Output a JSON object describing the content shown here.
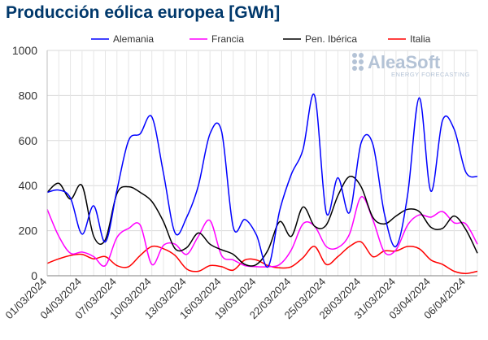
{
  "chart_data": {
    "type": "line",
    "title": "Producción eólica europea [GWh]",
    "xlabel": "",
    "ylabel": "",
    "ylim": [
      0,
      1000
    ],
    "yticks": [
      0,
      200,
      400,
      600,
      800,
      1000
    ],
    "grid": true,
    "legend_position": "top",
    "x": [
      "01/03/2024",
      "02/03/2024",
      "03/03/2024",
      "04/03/2024",
      "05/03/2024",
      "06/03/2024",
      "07/03/2024",
      "08/03/2024",
      "09/03/2024",
      "10/03/2024",
      "11/03/2024",
      "12/03/2024",
      "13/03/2024",
      "14/03/2024",
      "15/03/2024",
      "16/03/2024",
      "17/03/2024",
      "18/03/2024",
      "19/03/2024",
      "20/03/2024",
      "21/03/2024",
      "22/03/2024",
      "23/03/2024",
      "24/03/2024",
      "25/03/2024",
      "26/03/2024",
      "27/03/2024",
      "28/03/2024",
      "29/03/2024",
      "30/03/2024",
      "31/03/2024",
      "01/04/2024",
      "02/04/2024",
      "03/04/2024",
      "04/04/2024",
      "05/04/2024",
      "06/04/2024",
      "07/04/2024"
    ],
    "xtick_labels": [
      "01/03/2024",
      "04/03/2024",
      "07/03/2024",
      "10/03/2024",
      "13/03/2024",
      "16/03/2024",
      "19/03/2024",
      "22/03/2024",
      "25/03/2024",
      "28/03/2024",
      "31/03/2024",
      "03/04/2024",
      "06/04/2024"
    ],
    "series": [
      {
        "name": "Alemania",
        "color": "#0000ff",
        "values": [
          370,
          380,
          345,
          185,
          310,
          150,
          380,
          600,
          630,
          705,
          455,
          190,
          260,
          400,
          630,
          640,
          215,
          250,
          180,
          40,
          290,
          450,
          560,
          800,
          280,
          435,
          280,
          590,
          585,
          275,
          130,
          360,
          790,
          375,
          690,
          650,
          460,
          440
        ]
      },
      {
        "name": "Francia",
        "color": "#ff00ff",
        "values": [
          295,
          175,
          100,
          105,
          85,
          45,
          170,
          210,
          225,
          50,
          135,
          140,
          95,
          175,
          245,
          90,
          70,
          45,
          40,
          40,
          50,
          115,
          230,
          220,
          130,
          125,
          185,
          350,
          250,
          105,
          115,
          225,
          270,
          260,
          285,
          235,
          230,
          140
        ]
      },
      {
        "name": "Pen. Ibérica",
        "color": "#000000",
        "values": [
          370,
          410,
          340,
          400,
          175,
          160,
          365,
          395,
          370,
          330,
          240,
          120,
          125,
          190,
          140,
          115,
          95,
          50,
          50,
          115,
          240,
          175,
          305,
          220,
          225,
          355,
          440,
          395,
          260,
          230,
          265,
          295,
          285,
          215,
          210,
          265,
          205,
          100
        ]
      },
      {
        "name": "Italia",
        "color": "#ff0000",
        "values": [
          55,
          75,
          90,
          95,
          75,
          85,
          45,
          40,
          90,
          130,
          120,
          90,
          30,
          20,
          45,
          40,
          25,
          70,
          70,
          45,
          35,
          40,
          80,
          130,
          50,
          85,
          130,
          150,
          85,
          110,
          110,
          130,
          120,
          70,
          50,
          20,
          10,
          20
        ]
      }
    ]
  },
  "logo": {
    "name": "AleaSoft",
    "tagline": "ENERGY FORECASTING"
  }
}
